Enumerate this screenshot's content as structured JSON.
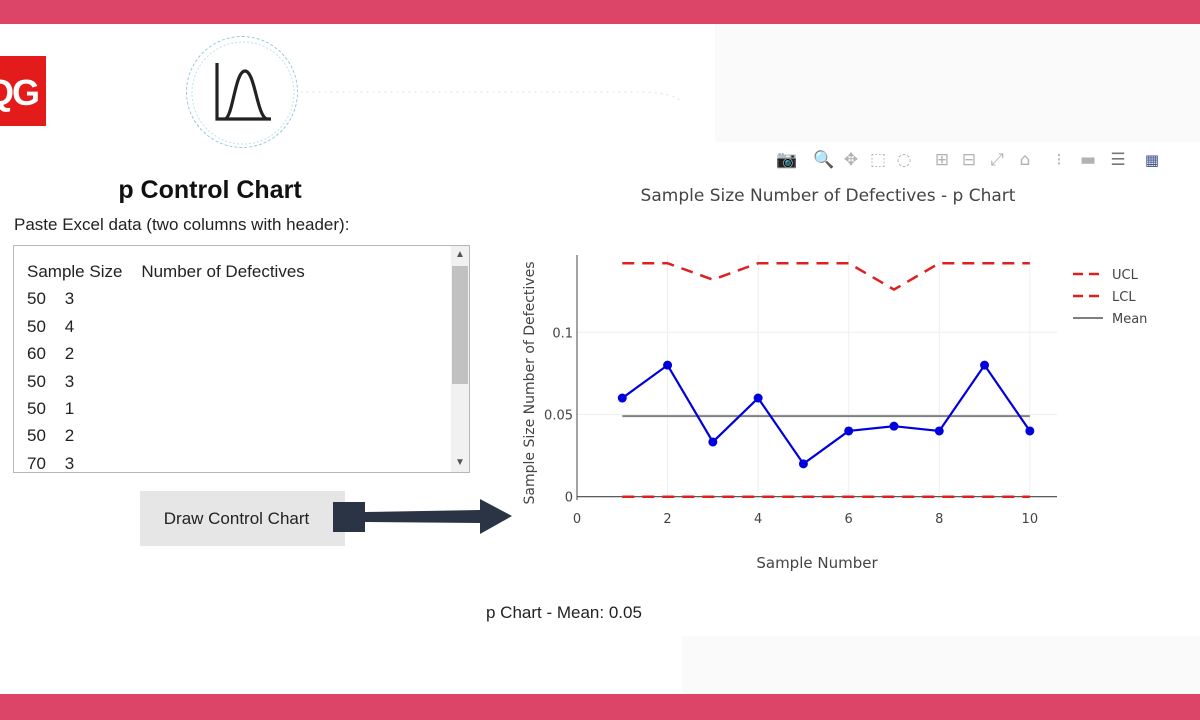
{
  "app": {
    "title": "p Control Chart",
    "paste_label": "Paste Excel data (two columns with header):",
    "draw_button": "Draw Control Chart",
    "mean_caption": "p Chart - Mean: 0.05"
  },
  "logos": {
    "brand_text": "QG",
    "brand_color": "#e31b1b"
  },
  "data_input": {
    "header": "Sample Size    Number of Defectives",
    "rows": [
      "50    3",
      "50    4",
      "60    2",
      "50    3",
      "50    1",
      "50    2",
      "70    3"
    ]
  },
  "modebar": {
    "icons": [
      "camera-icon",
      "zoom-icon",
      "pan-icon",
      "box-select-icon",
      "lasso-select-icon",
      "zoom-in-icon",
      "zoom-out-icon",
      "autoscale-icon",
      "reset-axes-icon",
      "spike-lines-icon",
      "hover-closest-icon",
      "hover-compare-icon",
      "plotly-logo-icon"
    ]
  },
  "colors": {
    "accent_band": "#dc4567",
    "series": "#0000dd",
    "limits": "#e02020",
    "mean": "#808080"
  },
  "chart_data": {
    "type": "line",
    "title": "Sample Size   Number of Defectives - p Chart",
    "xlabel": "Sample Number",
    "ylabel": "Sample Size   Number of Defectives",
    "xlim": [
      0,
      10.6
    ],
    "ylim": [
      -0.002,
      0.147
    ],
    "x_ticks": [
      0,
      2,
      4,
      6,
      8,
      10
    ],
    "y_ticks": [
      0,
      0.05,
      0.1
    ],
    "y_tick_labels": [
      "0",
      "0.05",
      "0.1"
    ],
    "grid": true,
    "legend_position": "right",
    "x": [
      1,
      2,
      3,
      4,
      5,
      6,
      7,
      8,
      9,
      10
    ],
    "series": [
      {
        "name": "",
        "role": "p",
        "style": "solid-markers",
        "color": "#0000dd",
        "values": [
          0.06,
          0.08,
          0.0333,
          0.06,
          0.02,
          0.04,
          0.0429,
          0.04,
          0.08,
          0.04
        ]
      },
      {
        "name": "UCL",
        "role": "ucl",
        "style": "dash",
        "color": "#e02020",
        "values": [
          0.142,
          0.142,
          0.132,
          0.142,
          0.142,
          0.142,
          0.126,
          0.142,
          0.142,
          0.142
        ]
      },
      {
        "name": "LCL",
        "role": "lcl",
        "style": "dash",
        "color": "#e02020",
        "values": [
          0,
          0,
          0,
          0,
          0,
          0,
          0,
          0,
          0,
          0
        ]
      },
      {
        "name": "Mean",
        "role": "mean",
        "style": "solid",
        "color": "#808080",
        "values": [
          0.049,
          0.049,
          0.049,
          0.049,
          0.049,
          0.049,
          0.049,
          0.049,
          0.049,
          0.049
        ]
      }
    ]
  }
}
